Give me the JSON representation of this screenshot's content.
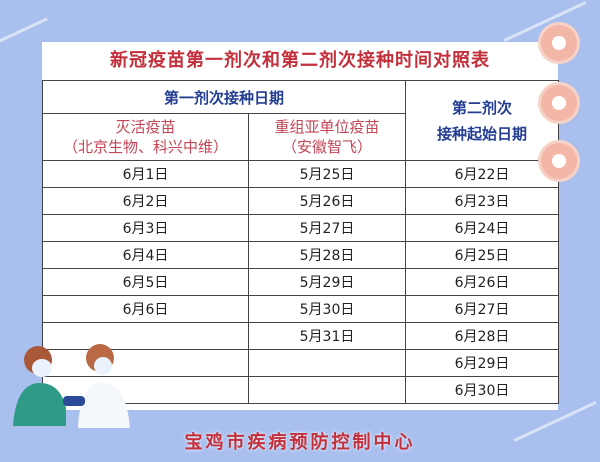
{
  "title": "新冠疫苗第一剂次和第二剂次接种时间对照表",
  "header": {
    "first_dose": "第一剂次接种日期",
    "second_dose_line1": "第二剂次",
    "second_dose_line2": "接种起始日期",
    "inactivated_line1": "灭活疫苗",
    "inactivated_line2": "（北京生物、科兴中维）",
    "recombinant_line1": "重组亚单位疫苗",
    "recombinant_line2": "（安徽智飞）"
  },
  "rows": [
    [
      "6月1日",
      "5月25日",
      "6月22日"
    ],
    [
      "6月2日",
      "5月26日",
      "6月23日"
    ],
    [
      "6月3日",
      "5月27日",
      "6月24日"
    ],
    [
      "6月4日",
      "5月28日",
      "6月25日"
    ],
    [
      "6月5日",
      "5月29日",
      "6月26日"
    ],
    [
      "6月6日",
      "5月30日",
      "6月27日"
    ],
    [
      "",
      "5月31日",
      "6月28日"
    ],
    [
      "",
      "",
      "6月29日"
    ],
    [
      "",
      "",
      "6月30日"
    ]
  ],
  "footer": "宝鸡市疾病预防控制中心",
  "colors": {
    "title": "#c3303c",
    "header": "#233d93",
    "subheader": "#c44656",
    "background": "#a9c0ee"
  }
}
